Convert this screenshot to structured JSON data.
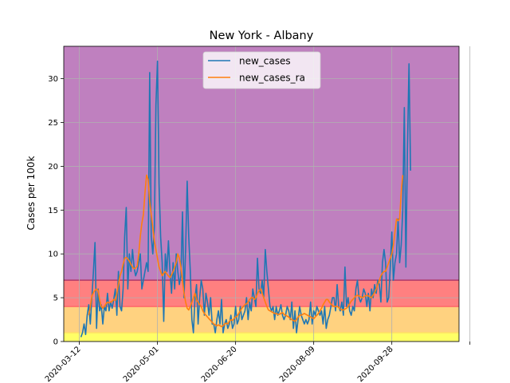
{
  "chart_data": {
    "type": "line",
    "title": "New York - Albany",
    "xlabel": "",
    "ylabel": "Cases per 100k",
    "xlim": [
      "2020-03-02",
      "2020-11-10"
    ],
    "ylim": [
      0,
      33.7
    ],
    "grid": true,
    "legend_position": "top-center",
    "x_ticks": [
      "2020-03-12",
      "2020-05-01",
      "2020-06-20",
      "2020-08-09",
      "2020-09-28",
      "2020-11-17"
    ],
    "x_tick_labels": [
      "2020-03-12",
      "2020-05-01",
      "2020-06-20",
      "2020-08-09",
      "2020-09-28",
      ""
    ],
    "y_ticks": [
      0,
      5,
      10,
      15,
      20,
      25,
      30
    ],
    "risk_bands": [
      {
        "from": 0,
        "to": 1,
        "color": "#ffff66"
      },
      {
        "from": 1,
        "to": 4,
        "color": "#ffd280"
      },
      {
        "from": 4,
        "to": 7,
        "color": "#ff8080"
      },
      {
        "from": 7,
        "to": 33.7,
        "color": "#bf80bf"
      }
    ],
    "series": [
      {
        "name": "new_cases",
        "color": "#1f77b4",
        "start": "2020-03-13",
        "values": [
          0.5,
          1.0,
          2.0,
          0.8,
          3.0,
          4.2,
          2.0,
          5.0,
          8.0,
          11.3,
          1.5,
          6.0,
          3.5,
          4.2,
          2.0,
          4.0,
          3.5,
          5.5,
          3.5,
          4.5,
          3.8,
          4.8,
          6.0,
          3.0,
          8.0,
          4.0,
          3.5,
          6.0,
          12.0,
          15.3,
          6.0,
          10.0,
          8.0,
          10.5,
          8.5,
          7.5,
          8.0,
          9.0,
          10.0,
          6.0,
          7.0,
          8.0,
          9.0,
          8.0,
          30.7,
          12.0,
          10.0,
          13.0,
          27.0,
          32.0,
          18.0,
          12.0,
          9.0,
          2.3,
          10.0,
          8.0,
          11.5,
          8.0,
          5.5,
          9.0,
          6.0,
          10.0,
          8.0,
          6.5,
          7.5,
          14.8,
          5.0,
          10.5,
          18.3,
          12.0,
          8.0,
          2.5,
          1.0,
          5.0,
          6.5,
          2.0,
          5.0,
          7.0,
          6.0,
          3.0,
          5.5,
          4.5,
          3.0,
          5.0,
          2.0,
          2.0,
          1.0,
          2.5,
          3.5,
          2.0,
          4.8,
          1.0,
          2.0,
          2.5,
          1.5,
          2.0,
          3.0,
          1.5,
          2.0,
          4.0,
          2.0,
          2.5,
          4.0,
          2.5,
          3.0,
          3.5,
          5.0,
          2.5,
          4.5,
          3.5,
          6.0,
          5.0,
          4.0,
          9.5,
          6.0,
          5.5,
          7.0,
          5.0,
          10.5,
          8.0,
          6.0,
          4.0,
          3.5,
          4.0,
          2.5,
          4.0,
          3.0,
          3.5,
          4.2,
          3.0,
          2.5,
          3.0,
          4.0,
          3.5,
          2.5,
          4.5,
          1.5,
          3.5,
          1.0,
          2.5,
          4.0,
          3.0,
          2.5,
          2.0,
          2.5,
          2.0,
          2.5,
          4.5,
          2.0,
          3.5,
          3.0,
          4.0,
          3.5,
          3.0,
          3.5,
          2.0,
          4.0,
          1.5,
          2.5,
          3.0,
          4.0,
          5.0,
          5.0,
          3.5,
          6.5,
          4.0,
          3.5,
          4.5,
          3.0,
          8.5,
          4.0,
          5.0,
          3.5,
          3.0,
          4.0,
          3.5,
          6.0,
          7.0,
          5.0,
          4.5,
          5.0,
          6.0,
          5.5,
          4.0,
          5.5,
          3.5,
          6.0,
          5.0,
          6.5,
          5.5,
          7.0,
          6.5,
          4.5,
          9.0,
          10.5,
          9.0,
          4.5,
          5.0,
          8.5,
          12.5,
          7.0,
          9.0,
          10.0,
          14.0,
          9.0,
          11.0,
          15.0,
          26.7,
          8.5,
          22.0,
          31.7,
          19.5
        ]
      },
      {
        "name": "new_cases_ra",
        "color": "#ff7f0e",
        "start": "2020-03-18",
        "values": [
          3.0,
          4.0,
          5.2,
          5.6,
          5.8,
          6.0,
          5.8,
          4.7,
          4.0,
          3.8,
          4.0,
          4.3,
          4.5,
          4.4,
          4.5,
          4.6,
          4.8,
          4.7,
          5.5,
          6.5,
          7.5,
          8.0,
          8.8,
          9.5,
          9.6,
          9.4,
          9.2,
          8.8,
          8.5,
          8.3,
          8.4,
          8.6,
          10.0,
          12.0,
          13.5,
          14.5,
          17.0,
          19.0,
          18.5,
          16.0,
          14.5,
          13.0,
          11.5,
          10.5,
          9.5,
          8.5,
          8.0,
          7.5,
          7.8,
          8.0,
          7.7,
          7.5,
          7.3,
          7.6,
          8.0,
          8.5,
          9.0,
          10.0,
          9.5,
          8.5,
          7.0,
          5.5,
          4.5,
          3.8,
          3.6,
          4.0,
          4.5,
          5.0,
          5.5,
          4.7,
          4.5,
          4.2,
          4.0,
          3.5,
          3.2,
          3.0,
          2.8,
          2.6,
          2.4,
          2.2,
          2.0,
          1.9,
          1.8,
          1.9,
          1.8,
          1.7,
          1.8,
          2.0,
          2.1,
          2.0,
          2.3,
          2.5,
          2.4,
          2.6,
          2.8,
          2.9,
          3.2,
          3.5,
          3.8,
          4.0,
          4.2,
          4.3,
          4.5,
          4.8,
          5.0,
          5.0,
          4.8,
          5.0,
          5.5,
          5.8,
          6.0,
          5.5,
          5.0,
          4.5,
          4.0,
          3.6,
          3.5,
          3.4,
          3.3,
          3.2,
          3.2,
          3.1,
          3.1,
          3.2,
          3.3,
          3.1,
          3.0,
          2.9,
          2.8,
          2.6,
          2.5,
          2.4,
          2.3,
          2.5,
          2.8,
          3.0,
          3.0,
          3.1,
          3.2,
          3.1,
          3.0,
          2.9,
          2.8,
          2.7,
          2.6,
          2.8,
          3.0,
          3.2,
          3.5,
          3.8,
          4.2,
          4.5,
          4.8,
          4.8,
          4.5,
          4.3,
          4.1,
          4.0,
          4.0,
          4.0,
          3.9,
          3.7,
          3.6,
          3.6,
          3.7,
          3.8,
          4.0,
          4.3,
          4.6,
          4.8,
          5.0,
          5.2,
          5.3,
          5.2,
          5.1,
          5.0,
          5.1,
          5.2,
          5.3,
          5.2,
          5.1,
          5.0,
          5.3,
          5.6,
          6.0,
          6.5,
          7.0,
          7.5,
          7.8,
          8.0,
          8.0,
          8.5,
          9.0,
          9.5,
          10.0,
          11.0,
          12.5,
          14.0,
          13.8,
          14.0,
          17.0,
          19.0
        ]
      }
    ]
  }
}
